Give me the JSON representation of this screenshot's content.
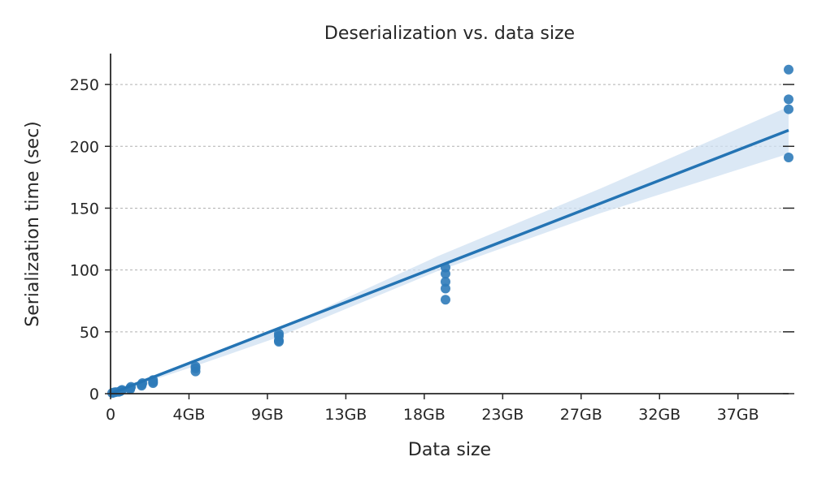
{
  "chart_data": {
    "type": "scatter",
    "title": "Deserialization vs. data size",
    "xlabel": "Data size",
    "ylabel": "Serialization time (sec)",
    "xlim": [
      0,
      41.5
    ],
    "ylim": [
      0,
      275
    ],
    "x_ticks": [
      {
        "value": 0,
        "label": "0"
      },
      {
        "value": 4.8,
        "label": "4GB"
      },
      {
        "value": 9.6,
        "label": "9GB"
      },
      {
        "value": 14.4,
        "label": "13GB"
      },
      {
        "value": 19.2,
        "label": "18GB"
      },
      {
        "value": 24.0,
        "label": "23GB"
      },
      {
        "value": 28.8,
        "label": "27GB"
      },
      {
        "value": 33.6,
        "label": "32GB"
      },
      {
        "value": 38.4,
        "label": "37GB"
      }
    ],
    "y_ticks": [
      0,
      50,
      100,
      150,
      200,
      250
    ],
    "grid": "y-dashed",
    "colors": {
      "points": "#2f7bb9",
      "line": "#2474b4",
      "band": "#cfe0f1"
    },
    "points": [
      {
        "x": 0.1,
        "y": 0.5
      },
      {
        "x": 0.2,
        "y": 1
      },
      {
        "x": 0.3,
        "y": 1.2
      },
      {
        "x": 0.5,
        "y": 1.5
      },
      {
        "x": 0.6,
        "y": 2
      },
      {
        "x": 0.65,
        "y": 2.5
      },
      {
        "x": 0.7,
        "y": 3
      },
      {
        "x": 1.2,
        "y": 3.5
      },
      {
        "x": 1.2,
        "y": 4.5
      },
      {
        "x": 1.25,
        "y": 5.5
      },
      {
        "x": 1.9,
        "y": 6.5
      },
      {
        "x": 1.9,
        "y": 7.5
      },
      {
        "x": 1.95,
        "y": 8.5
      },
      {
        "x": 2.6,
        "y": 8.5
      },
      {
        "x": 2.6,
        "y": 9.5
      },
      {
        "x": 2.6,
        "y": 11
      },
      {
        "x": 5.2,
        "y": 18
      },
      {
        "x": 5.2,
        "y": 20.5
      },
      {
        "x": 5.2,
        "y": 22
      },
      {
        "x": 10.3,
        "y": 42
      },
      {
        "x": 10.3,
        "y": 43
      },
      {
        "x": 10.3,
        "y": 46.5
      },
      {
        "x": 10.3,
        "y": 48.5
      },
      {
        "x": 20.5,
        "y": 76
      },
      {
        "x": 20.5,
        "y": 85
      },
      {
        "x": 20.5,
        "y": 90.5
      },
      {
        "x": 20.5,
        "y": 97
      },
      {
        "x": 20.5,
        "y": 102
      },
      {
        "x": 41.5,
        "y": 191
      },
      {
        "x": 41.5,
        "y": 230
      },
      {
        "x": 41.5,
        "y": 238
      },
      {
        "x": 41.5,
        "y": 262
      }
    ],
    "regression": {
      "x": [
        0,
        41.5
      ],
      "y": [
        -1.5,
        213
      ]
    },
    "confidence_band": {
      "x": [
        0,
        5,
        10,
        20,
        30,
        41.5
      ],
      "lower": [
        -3.5,
        21.5,
        44.5,
        99,
        146,
        194
      ],
      "upper": [
        0.5,
        24.5,
        50.5,
        111,
        166,
        232
      ]
    }
  }
}
